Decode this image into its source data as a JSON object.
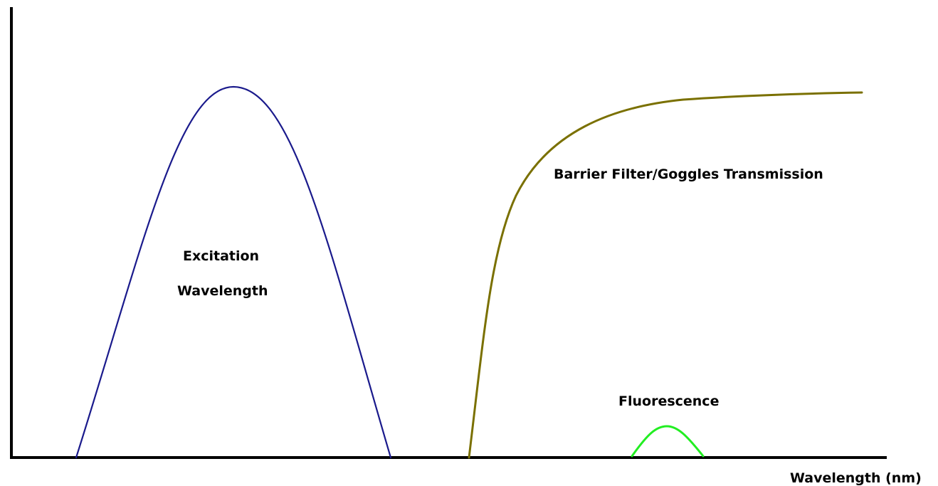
{
  "diagram": {
    "labels": {
      "excitation_line1": "Excitation",
      "excitation_line2": "Wavelength",
      "barrier": "Barrier Filter/Goggles Transmission",
      "fluorescence": "Fluorescence",
      "x_axis": "Wavelength (nm)"
    },
    "colors": {
      "axis": "#000000",
      "excitation": "#1a1a8c",
      "barrier": "#7a7000",
      "fluorescence": "#22ee22"
    }
  }
}
